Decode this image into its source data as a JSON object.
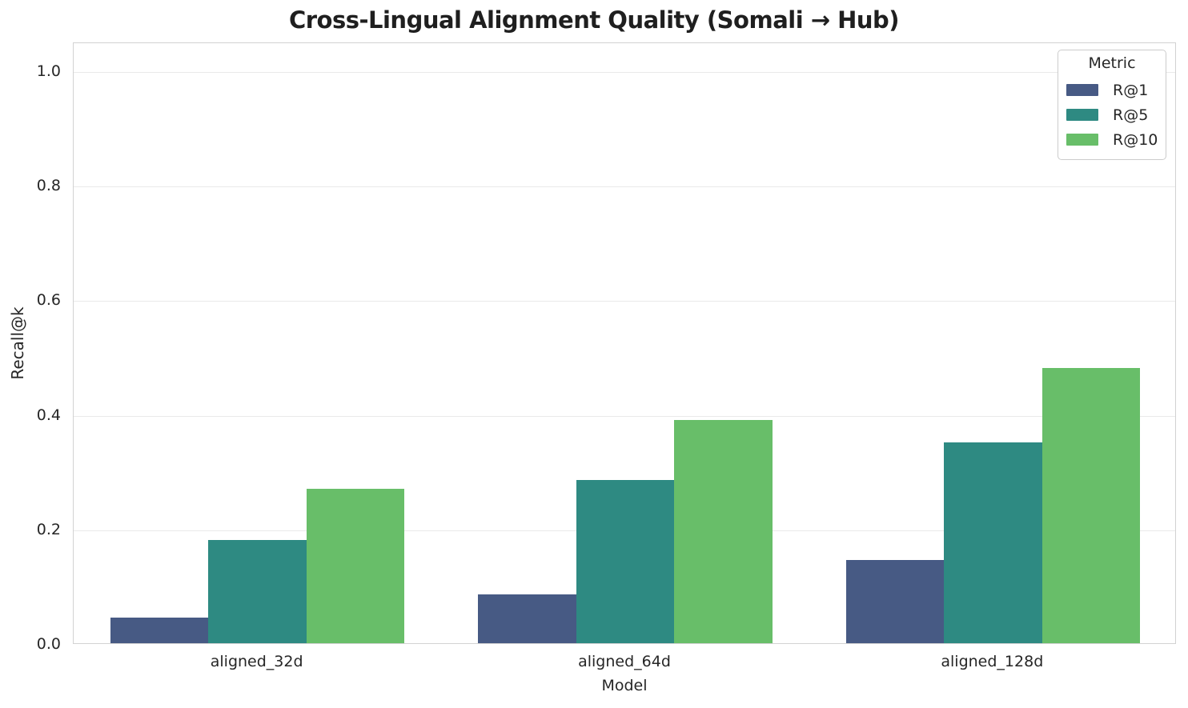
{
  "chart_data": {
    "type": "bar",
    "title": "Cross-Lingual Alignment Quality (Somali → Hub)",
    "xlabel": "Model",
    "ylabel": "Recall@k",
    "categories": [
      "aligned_32d",
      "aligned_64d",
      "aligned_128d"
    ],
    "series": [
      {
        "name": "R@1",
        "color": "#475a84",
        "values": [
          0.045,
          0.085,
          0.145
        ]
      },
      {
        "name": "R@5",
        "color": "#2e8a82",
        "values": [
          0.18,
          0.285,
          0.35
        ]
      },
      {
        "name": "R@10",
        "color": "#68be69",
        "values": [
          0.27,
          0.39,
          0.48
        ]
      }
    ],
    "ylim": [
      0,
      1.05
    ],
    "yticks": [
      {
        "value": 0.0,
        "label": "0.0"
      },
      {
        "value": 0.2,
        "label": "0.2"
      },
      {
        "value": 0.4,
        "label": "0.4"
      },
      {
        "value": 0.6,
        "label": "0.6"
      },
      {
        "value": 0.8,
        "label": "0.8"
      },
      {
        "value": 1.0,
        "label": "1.0"
      }
    ],
    "grid": "horizontal",
    "legend": {
      "title": "Metric",
      "position": "upper right"
    },
    "group_width_fraction": 0.8
  }
}
